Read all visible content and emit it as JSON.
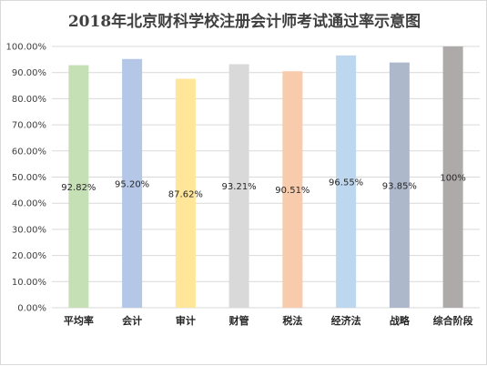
{
  "chart_data": {
    "type": "bar",
    "title": "2018年北京财科学校注册会计师考试通过率示意图",
    "xlabel": "",
    "ylabel": "",
    "ylim": [
      0,
      100
    ],
    "yticks": [
      "0.00%",
      "10.00%",
      "20.00%",
      "30.00%",
      "40.00%",
      "50.00%",
      "60.00%",
      "70.00%",
      "80.00%",
      "90.00%",
      "100.00%"
    ],
    "grid": true,
    "legend": "none",
    "categories": [
      "平均率",
      "会计",
      "审计",
      "财管",
      "税法",
      "经济法",
      "战略",
      "综合阶段"
    ],
    "values": [
      92.82,
      95.2,
      87.62,
      93.21,
      90.51,
      96.55,
      93.85,
      100
    ],
    "data_labels": [
      "92.82%",
      "95.20%",
      "87.62%",
      "93.21%",
      "90.51%",
      "96.55%",
      "93.85%",
      "100%"
    ],
    "colors": [
      "#c5e0b4",
      "#b4c7e7",
      "#ffe699",
      "#d9d9d9",
      "#f8cbad",
      "#bdd7ee",
      "#adb9ca",
      "#aeaaaa"
    ]
  }
}
